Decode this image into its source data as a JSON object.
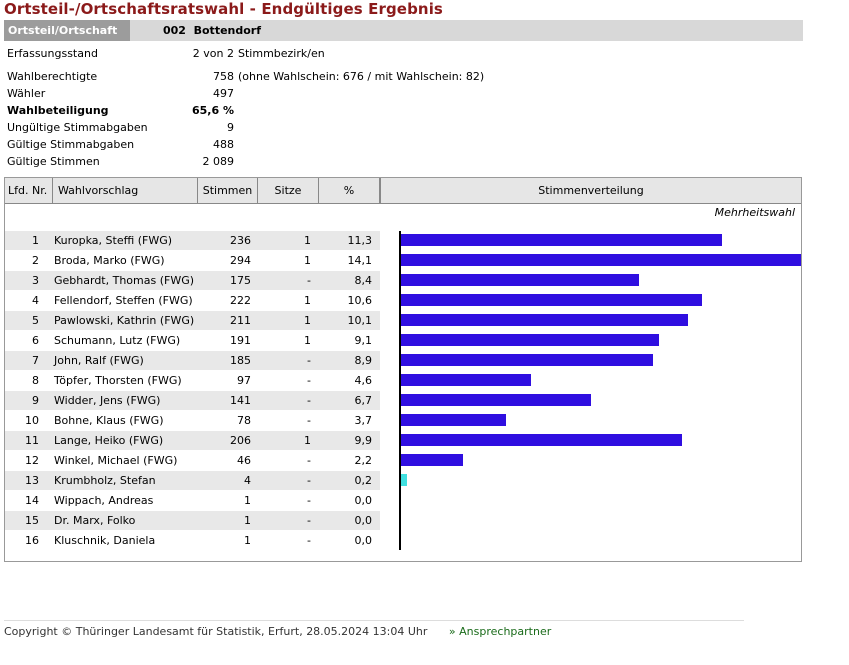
{
  "page": {
    "title": "Ortsteil-/Ortschaftsratswahl - Endgültiges Ergebnis",
    "area_label": "Ortsteil/Ortschaft",
    "area_value": "002  Bottendorf"
  },
  "summary": [
    {
      "key": "Erfassungsstand",
      "value": "2 von 2",
      "note": "Stimmbezirk/en",
      "bold": false
    },
    {
      "key": "Wahlberechtigte",
      "value": "758",
      "note": "(ohne Wahlschein: 676 / mit Wahlschein: 82)",
      "bold": false
    },
    {
      "key": "Wähler",
      "value": "497",
      "note": "",
      "bold": false
    },
    {
      "key": "Wahlbeteiligung",
      "value": "65,6 %",
      "note": "",
      "bold": true
    },
    {
      "key": "Ungültige Stimmabgaben",
      "value": "9",
      "note": "",
      "bold": false
    },
    {
      "key": "Gültige Stimmabgaben",
      "value": "488",
      "note": "",
      "bold": false
    },
    {
      "key": "Gültige Stimmen",
      "value": "2 089",
      "note": "",
      "bold": false
    }
  ],
  "table": {
    "headers": {
      "nr": "Lfd. Nr.",
      "name": "Wahlvorschlag",
      "votes": "Stimmen",
      "seats": "Sitze",
      "pct": "%",
      "dist": "Stimmenverteilung"
    },
    "method": "Mehrheitswahl",
    "rows": [
      {
        "nr": "1",
        "name": "Kuropka, Steffi (FWG)",
        "votes": "236",
        "seats": "1",
        "pct": "11,3",
        "share": 11.3,
        "color": "#2f0ee0"
      },
      {
        "nr": "2",
        "name": "Broda, Marko (FWG)",
        "votes": "294",
        "seats": "1",
        "pct": "14,1",
        "share": 14.1,
        "color": "#2f0ee0"
      },
      {
        "nr": "3",
        "name": "Gebhardt, Thomas (FWG)",
        "votes": "175",
        "seats": "-",
        "pct": "8,4",
        "share": 8.4,
        "color": "#2f0ee0"
      },
      {
        "nr": "4",
        "name": "Fellendorf, Steffen (FWG)",
        "votes": "222",
        "seats": "1",
        "pct": "10,6",
        "share": 10.6,
        "color": "#2f0ee0"
      },
      {
        "nr": "5",
        "name": "Pawlowski, Kathrin (FWG)",
        "votes": "211",
        "seats": "1",
        "pct": "10,1",
        "share": 10.1,
        "color": "#2f0ee0"
      },
      {
        "nr": "6",
        "name": "Schumann, Lutz (FWG)",
        "votes": "191",
        "seats": "1",
        "pct": "9,1",
        "share": 9.1,
        "color": "#2f0ee0"
      },
      {
        "nr": "7",
        "name": "John, Ralf (FWG)",
        "votes": "185",
        "seats": "-",
        "pct": "8,9",
        "share": 8.9,
        "color": "#2f0ee0"
      },
      {
        "nr": "8",
        "name": "Töpfer, Thorsten (FWG)",
        "votes": "97",
        "seats": "-",
        "pct": "4,6",
        "share": 4.6,
        "color": "#2f0ee0"
      },
      {
        "nr": "9",
        "name": "Widder, Jens (FWG)",
        "votes": "141",
        "seats": "-",
        "pct": "6,7",
        "share": 6.7,
        "color": "#2f0ee0"
      },
      {
        "nr": "10",
        "name": "Bohne, Klaus (FWG)",
        "votes": "78",
        "seats": "-",
        "pct": "3,7",
        "share": 3.7,
        "color": "#2f0ee0"
      },
      {
        "nr": "11",
        "name": "Lange, Heiko (FWG)",
        "votes": "206",
        "seats": "1",
        "pct": "9,9",
        "share": 9.9,
        "color": "#2f0ee0"
      },
      {
        "nr": "12",
        "name": "Winkel, Michael (FWG)",
        "votes": "46",
        "seats": "-",
        "pct": "2,2",
        "share": 2.2,
        "color": "#2f0ee0"
      },
      {
        "nr": "13",
        "name": "Krumbholz, Stefan",
        "votes": "4",
        "seats": "-",
        "pct": "0,2",
        "share": 0.2,
        "color": "#40e0e0"
      },
      {
        "nr": "14",
        "name": "Wippach, Andreas",
        "votes": "1",
        "seats": "-",
        "pct": "0,0",
        "share": 0.0,
        "color": "#40e0e0"
      },
      {
        "nr": "15",
        "name": "Dr. Marx, Folko",
        "votes": "1",
        "seats": "-",
        "pct": "0,0",
        "share": 0.0,
        "color": "#40e0e0"
      },
      {
        "nr": "16",
        "name": "Kluschnik, Daniela",
        "votes": "1",
        "seats": "-",
        "pct": "0,0",
        "share": 0.0,
        "color": "#40e0e0"
      }
    ]
  },
  "footer": {
    "copyright": "Copyright © Thüringer Landesamt für Statistik, Erfurt, 28.05.2024 13:04 Uhr",
    "link": "» Ansprechpartner"
  },
  "colors": {
    "title": "#8b1a1a",
    "bar": "#2f0ee0",
    "bar_small": "#40e0e0",
    "stripe": "#e8e8e8"
  }
}
